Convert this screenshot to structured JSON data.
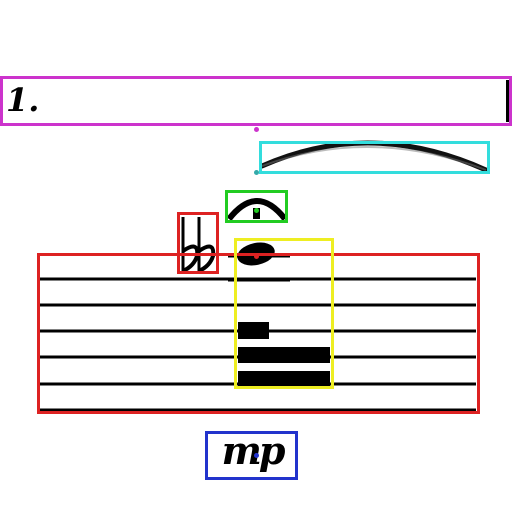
{
  "annotations": [
    {
      "id": "volta",
      "label": "1.",
      "color": "#cc33cc"
    },
    {
      "id": "slur",
      "color": "#33dddd"
    },
    {
      "id": "fermata",
      "color": "#22cc22"
    },
    {
      "id": "accidental",
      "glyph": "double-flat",
      "color": "#dd2222"
    },
    {
      "id": "staff",
      "color": "#dd2222",
      "line_count": 5
    },
    {
      "id": "note-stem-beam",
      "color": "#eeee22"
    },
    {
      "id": "dynamic",
      "label": "mp",
      "color": "#2233cc"
    }
  ],
  "volta": {
    "label": "1."
  },
  "dynamic": {
    "label": "mp"
  }
}
